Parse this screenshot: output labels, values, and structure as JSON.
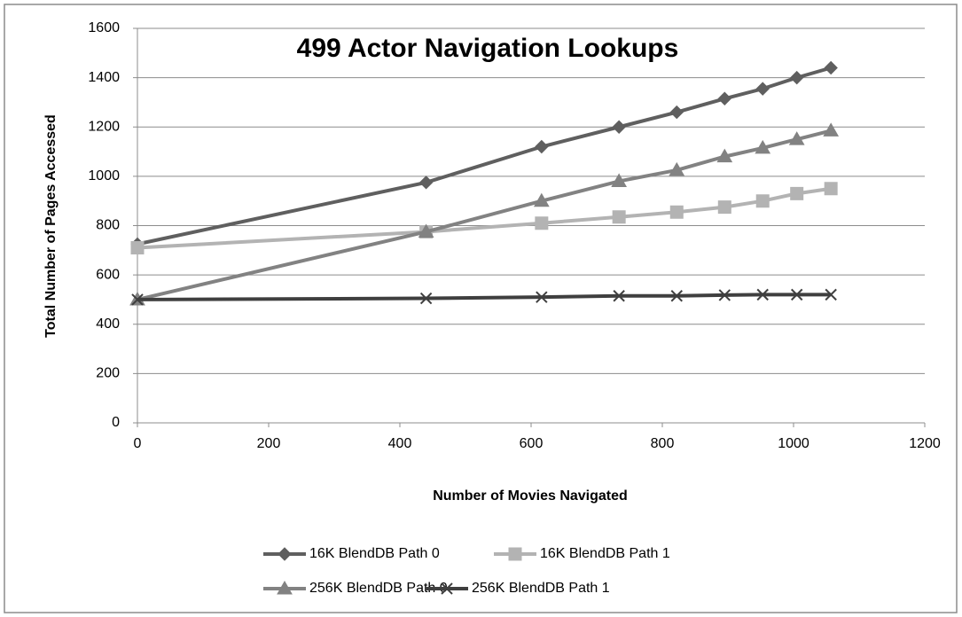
{
  "chart_data": {
    "type": "line",
    "title": "499 Actor Navigation Lookups",
    "x_label": "Number of Movies Navigated",
    "y_label": "Total Number of Pages Accessed",
    "x": [
      0,
      440,
      616,
      734,
      822,
      895,
      953,
      1005,
      1057
    ],
    "series": [
      {
        "name": "16K BlendDB Path 0",
        "color": "#5f5f5f",
        "marker": "diamond",
        "values": [
          725,
          975,
          1120,
          1200,
          1260,
          1315,
          1355,
          1400,
          1440
        ]
      },
      {
        "name": "16K BlendDB Path 1",
        "color": "#b3b3b3",
        "marker": "square",
        "values": [
          710,
          775,
          810,
          835,
          855,
          875,
          900,
          930,
          950
        ]
      },
      {
        "name": "256K BlendDB Path 0",
        "color": "#828282",
        "marker": "triangle",
        "values": [
          500,
          775,
          900,
          980,
          1025,
          1080,
          1115,
          1150,
          1185
        ]
      },
      {
        "name": "256K BlendDB Path 1",
        "color": "#3f3f3f",
        "marker": "x",
        "values": [
          500,
          505,
          510,
          515,
          515,
          518,
          520,
          520,
          520
        ]
      }
    ],
    "xlim": [
      0,
      1200
    ],
    "xticks": [
      0,
      200,
      400,
      600,
      800,
      1000,
      1200
    ],
    "ylim": [
      0,
      1600
    ],
    "yticks": [
      0,
      200,
      400,
      600,
      800,
      1000,
      1200,
      1400,
      1600
    ],
    "grid": true,
    "legend": "bottom"
  }
}
